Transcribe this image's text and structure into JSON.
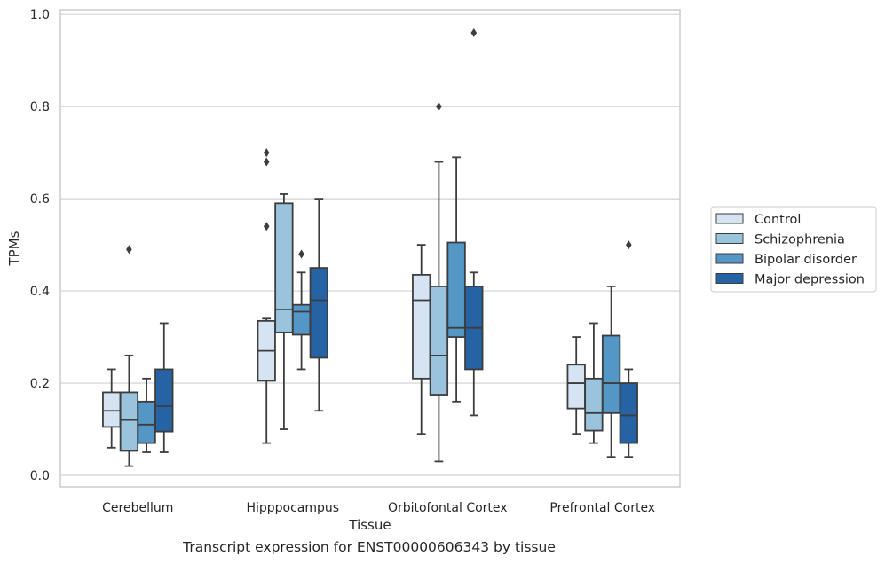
{
  "chart_data": {
    "type": "box",
    "xlabel": "Tissue",
    "ylabel": "TPMs",
    "ylim": [
      -0.025,
      1.01
    ],
    "yticks": [
      0.0,
      0.2,
      0.4,
      0.6,
      0.8,
      1.0
    ],
    "ytick_labels": [
      "0.0",
      "0.2",
      "0.4",
      "0.6",
      "0.8",
      "1.0"
    ],
    "grid": "horizontal",
    "legend_position": "right",
    "categories": [
      "Cerebellum",
      "Hipppocampus",
      "Orbitofontal Cortex",
      "Prefrontal Cortex"
    ],
    "series": [
      {
        "name": "Control",
        "color": "#d6e3f3",
        "boxes": [
          {
            "whislo": 0.06,
            "q1": 0.105,
            "med": 0.14,
            "q3": 0.18,
            "whishi": 0.23,
            "fliers": []
          },
          {
            "whislo": 0.07,
            "q1": 0.205,
            "med": 0.27,
            "q3": 0.335,
            "whishi": 0.34,
            "fliers": [
              0.54,
              0.68,
              0.7
            ]
          },
          {
            "whislo": 0.09,
            "q1": 0.21,
            "med": 0.38,
            "q3": 0.435,
            "whishi": 0.5,
            "fliers": []
          },
          {
            "whislo": 0.09,
            "q1": 0.145,
            "med": 0.2,
            "q3": 0.24,
            "whishi": 0.3,
            "fliers": []
          }
        ]
      },
      {
        "name": "Schizophrenia",
        "color": "#9ac3de",
        "boxes": [
          {
            "whislo": 0.02,
            "q1": 0.053,
            "med": 0.12,
            "q3": 0.18,
            "whishi": 0.26,
            "fliers": [
              0.49
            ]
          },
          {
            "whislo": 0.1,
            "q1": 0.31,
            "med": 0.36,
            "q3": 0.59,
            "whishi": 0.61,
            "fliers": []
          },
          {
            "whislo": 0.03,
            "q1": 0.175,
            "med": 0.26,
            "q3": 0.41,
            "whishi": 0.68,
            "fliers": [
              0.8
            ]
          },
          {
            "whislo": 0.07,
            "q1": 0.097,
            "med": 0.135,
            "q3": 0.21,
            "whishi": 0.33,
            "fliers": []
          }
        ]
      },
      {
        "name": "Bipolar disorder",
        "color": "#5497c6",
        "boxes": [
          {
            "whislo": 0.05,
            "q1": 0.07,
            "med": 0.11,
            "q3": 0.16,
            "whishi": 0.21,
            "fliers": []
          },
          {
            "whislo": 0.23,
            "q1": 0.305,
            "med": 0.355,
            "q3": 0.37,
            "whishi": 0.44,
            "fliers": [
              0.48
            ]
          },
          {
            "whislo": 0.16,
            "q1": 0.3,
            "med": 0.32,
            "q3": 0.505,
            "whishi": 0.69,
            "fliers": []
          },
          {
            "whislo": 0.04,
            "q1": 0.135,
            "med": 0.2,
            "q3": 0.303,
            "whishi": 0.41,
            "fliers": []
          }
        ]
      },
      {
        "name": "Major depression",
        "color": "#2563a5",
        "boxes": [
          {
            "whislo": 0.05,
            "q1": 0.095,
            "med": 0.15,
            "q3": 0.23,
            "whishi": 0.33,
            "fliers": []
          },
          {
            "whislo": 0.14,
            "q1": 0.255,
            "med": 0.38,
            "q3": 0.45,
            "whishi": 0.6,
            "fliers": []
          },
          {
            "whislo": 0.13,
            "q1": 0.23,
            "med": 0.32,
            "q3": 0.41,
            "whishi": 0.44,
            "fliers": [
              0.96
            ]
          },
          {
            "whislo": 0.04,
            "q1": 0.07,
            "med": 0.13,
            "q3": 0.2,
            "whishi": 0.23,
            "fliers": [
              0.5
            ]
          }
        ]
      }
    ],
    "caption": "Transcript expression for ENST00000606343 by tissue"
  }
}
